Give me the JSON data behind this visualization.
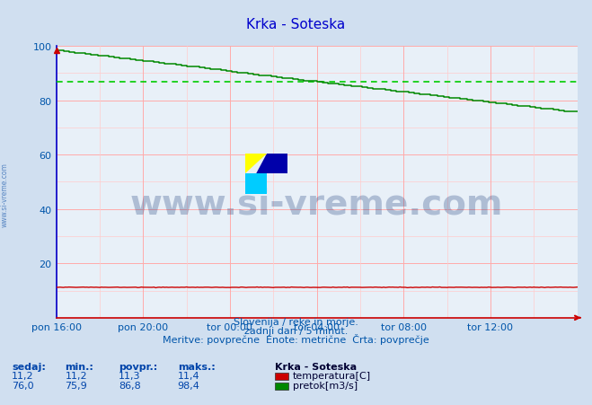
{
  "title": "Krka - Soteska",
  "bg_color": "#d0dff0",
  "plot_bg_color": "#e8f0f8",
  "title_color": "#0000cc",
  "grid_color_major": "#ffaaaa",
  "grid_color_minor": "#ffcccc",
  "xlabel_color": "#0055aa",
  "ylabel_color": "#0055aa",
  "x_tick_labels": [
    "pon 16:00",
    "pon 20:00",
    "tor 00:00",
    "tor 04:00",
    "tor 08:00",
    "tor 12:00"
  ],
  "x_tick_positions": [
    0,
    48,
    96,
    144,
    192,
    240
  ],
  "y_tick_positions": [
    0,
    20,
    40,
    60,
    80,
    100
  ],
  "ylim": [
    0,
    100
  ],
  "xlim": [
    0,
    288
  ],
  "pretok_avg": 86.8,
  "temperatura_color": "#cc0000",
  "pretok_color": "#008800",
  "pretok_avg_color": "#00cc00",
  "footer_line1": "Slovenija / reke in morje.",
  "footer_line2": "zadnji dan / 5 minut.",
  "footer_line3": "Meritve: povprečne  Enote: metrične  Črta: povprečje",
  "footer_color": "#0055aa",
  "legend_title": "Krka - Soteska",
  "legend_items": [
    "temperatura[C]",
    "pretok[m3/s]"
  ],
  "legend_colors": [
    "#cc0000",
    "#008800"
  ],
  "table_headers": [
    "sedaj:",
    "min.:",
    "povpr.:",
    "maks.:"
  ],
  "table_temp": [
    11.2,
    11.2,
    11.3,
    11.4
  ],
  "table_pretok": [
    76.0,
    75.9,
    86.8,
    98.4
  ],
  "axis_color": "#cc0000",
  "spine_color": "#0000cc",
  "sidewatermark_text": "www.si-vreme.com",
  "sidewatermark_color": "#4477bb",
  "watermark_text": "www.si-vreme.com",
  "watermark_color": "#1a3a7a",
  "watermark_alpha": 0.28,
  "watermark_fontsize": 28
}
